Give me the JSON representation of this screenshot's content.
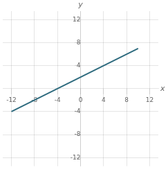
{
  "chart_data": {
    "type": "line",
    "x": [
      -12,
      10
    ],
    "values": [
      -4,
      7
    ],
    "color": "#2e6b7e",
    "xlabel": "x",
    "ylabel": "y",
    "xlim": [
      -13.5,
      13.5
    ],
    "ylim": [
      -13.5,
      13.5
    ],
    "xticks": [
      -12,
      -8,
      -4,
      0,
      4,
      8,
      12
    ],
    "yticks": [
      -12,
      -8,
      -4,
      4,
      8,
      12
    ],
    "grid": true
  }
}
